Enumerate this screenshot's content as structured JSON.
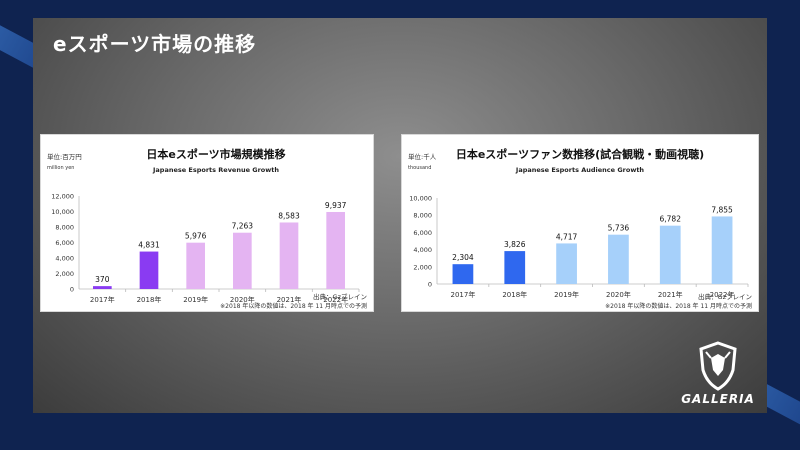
{
  "slide": {
    "title": "eスポーツ市場の推移"
  },
  "logo": {
    "text": "GALLERIA",
    "icon": "shield-emblem-icon"
  },
  "chart_data": [
    {
      "type": "bar",
      "title": "日本eスポーツ市場規模推移",
      "subtitle": "Japanese Esports Revenue Growth",
      "unit_label": "単位:百万円",
      "unit_label_en": "million yen",
      "categories": [
        "2017年",
        "2018年",
        "2019年",
        "2020年",
        "2021年",
        "2022年"
      ],
      "values": [
        370,
        4831,
        5976,
        7263,
        8583,
        9937
      ],
      "value_labels": [
        "370",
        "4,831",
        "5,976",
        "7,263",
        "8,583",
        "9,937"
      ],
      "yticks": [
        "0",
        "2,000",
        "4,000",
        "6,000",
        "8,000",
        "10,000",
        "12,000"
      ],
      "ylim": [
        0,
        12000
      ],
      "bar_colors": [
        "#8a3bf2",
        "#8a3bf2",
        "#e4b4f2",
        "#e4b4f2",
        "#e4b4f2",
        "#e4b4f2"
      ],
      "source": "出典：Gzブレイン",
      "note": "※2018 年以降の数値は、2018 年 11 月時点での予測"
    },
    {
      "type": "bar",
      "title": "日本eスポーツファン数推移(試合観戦・動画視聴)",
      "subtitle": "Japanese Esports Audience Growth",
      "unit_label": "単位:千人",
      "unit_label_en": "thousand",
      "categories": [
        "2017年",
        "2018年",
        "2019年",
        "2020年",
        "2021年",
        "2022年"
      ],
      "values": [
        2304,
        3826,
        4717,
        5736,
        6782,
        7855
      ],
      "value_labels": [
        "2,304",
        "3,826",
        "4,717",
        "5,736",
        "6,782",
        "7,855"
      ],
      "yticks": [
        "0",
        "2,000",
        "4,000",
        "6,000",
        "8,000",
        "10,000"
      ],
      "ylim": [
        0,
        10000
      ],
      "bar_colors": [
        "#2f68ef",
        "#2f68ef",
        "#a6d0fa",
        "#a6d0fa",
        "#a6d0fa",
        "#a6d0fa"
      ],
      "source": "出典：Gzブレイン",
      "note": "※2018 年以降の数値は、2018 年 11 月時点での予測"
    }
  ]
}
